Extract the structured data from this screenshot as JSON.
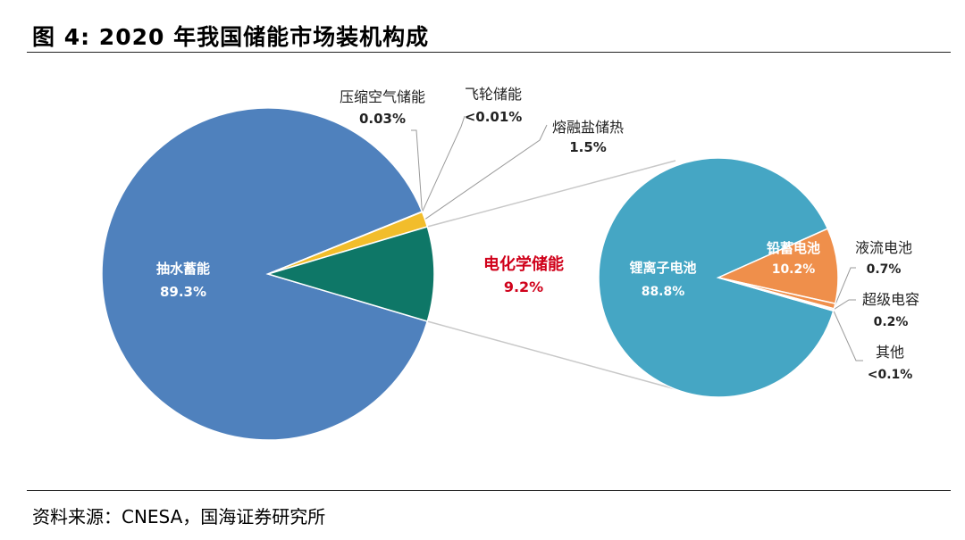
{
  "figure": {
    "title": "图 4:  2020 年我国储能市场装机构成",
    "source": "资料来源：CNESA，国海证券研究所"
  },
  "colors": {
    "pumped": "#4f81bd",
    "thermal": "#f2bd2b",
    "electrochem": "#0e7767",
    "lithium": "#45a6c4",
    "leadacid": "#ef8f4b",
    "highlight_text": "#d0021b",
    "connector": "#c8c8c8"
  },
  "chart_data": [
    {
      "type": "pie",
      "name": "main",
      "slices": [
        {
          "label": "抽水蓄能",
          "value_label": "89.3%",
          "value": 89.3
        },
        {
          "label": "压缩空气储能",
          "value_label": "0.03%",
          "value": 0.03
        },
        {
          "label": "飞轮储能",
          "value_label": "<0.01%",
          "value": 0.01
        },
        {
          "label": "熔融盐储热",
          "value_label": "1.5%",
          "value": 1.5
        },
        {
          "label": "电化学储能",
          "value_label": "9.2%",
          "value": 9.2
        }
      ]
    },
    {
      "type": "pie",
      "name": "breakdown",
      "slices": [
        {
          "label": "锂离子电池",
          "value_label": "88.8%",
          "value": 88.8
        },
        {
          "label": "铅蓄电池",
          "value_label": "10.2%",
          "value": 10.2
        },
        {
          "label": "液流电池",
          "value_label": "0.7%",
          "value": 0.7
        },
        {
          "label": "超级电容",
          "value_label": "0.2%",
          "value": 0.2
        },
        {
          "label": "其他",
          "value_label": "<0.1%",
          "value": 0.1
        }
      ]
    }
  ]
}
